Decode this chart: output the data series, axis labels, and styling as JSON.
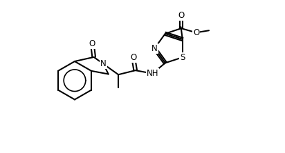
{
  "figsize": [
    4.12,
    2.22
  ],
  "dpi": 100,
  "xlim": [
    0,
    412
  ],
  "ylim": [
    0,
    222
  ],
  "lw": 1.5,
  "fs": 8.5,
  "bg": "white"
}
